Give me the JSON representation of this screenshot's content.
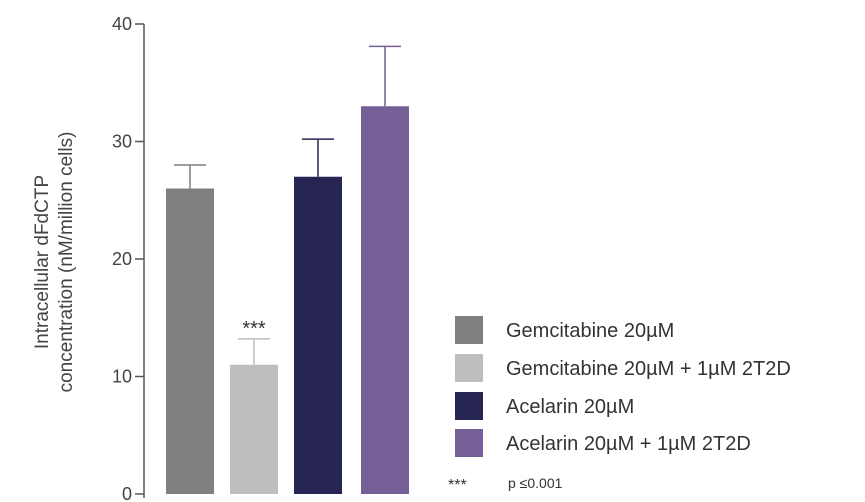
{
  "chart_data": {
    "type": "bar",
    "ylabel_line1": "Intracellular dFdCTP",
    "ylabel_line2": "concentration (nM/million cells)",
    "ylim": [
      0,
      40
    ],
    "yticks": [
      0,
      10,
      20,
      30,
      40
    ],
    "ytick_labels": [
      "0",
      "10",
      "20",
      "30",
      "40"
    ],
    "grid": false,
    "legend_position": "bottom-right",
    "categories": [
      "Gemcitabine 20µM",
      "Gemcitabine 20µM + 1µM 2T2D",
      "Acelarin 20µM",
      "Acelarin 20µM + 1µM 2T2D"
    ],
    "values": [
      26,
      11,
      27,
      33
    ],
    "error_upper": [
      28,
      13.2,
      30.2,
      38.1
    ],
    "colors": [
      "#7f7f7f",
      "#bdbec0",
      "#252453",
      "#745f96"
    ],
    "significance_labels": [
      "",
      "***",
      "",
      ""
    ],
    "legend": {
      "note_symbol": "***",
      "note_text": "p ≤0.001"
    }
  }
}
